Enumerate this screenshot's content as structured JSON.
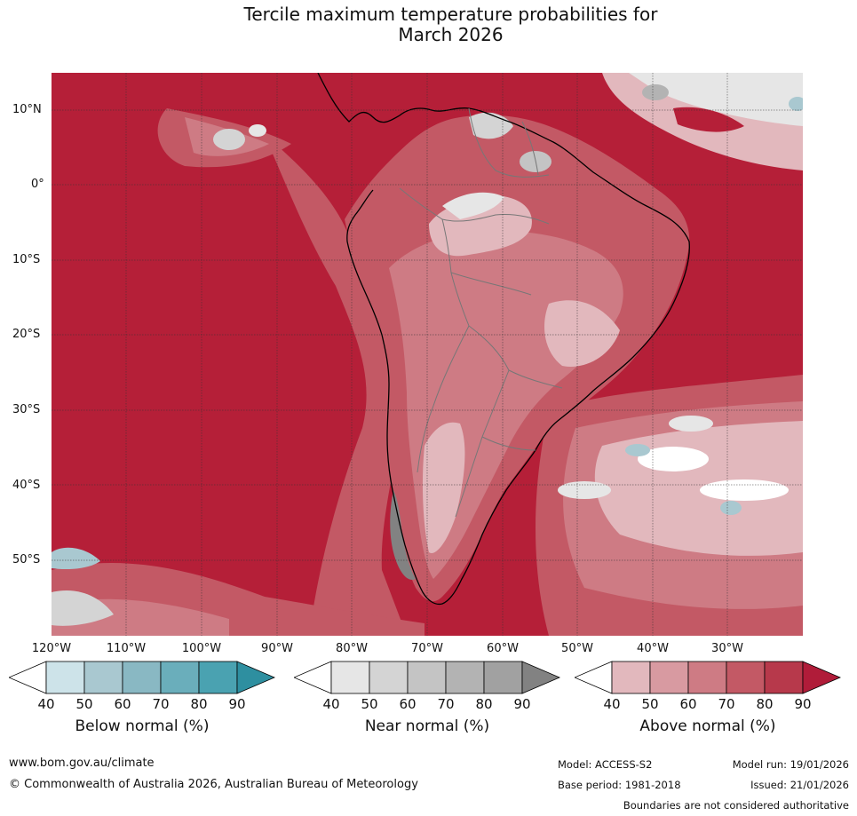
{
  "title_line1": "Tercile maximum temperature probabilities for",
  "title_line2": "March 2026",
  "map": {
    "lat_labels": [
      "10°N",
      "0°",
      "10°S",
      "20°S",
      "30°S",
      "40°S",
      "50°S"
    ],
    "lon_labels": [
      "120°W",
      "110°W",
      "100°W",
      "90°W",
      "80°W",
      "70°W",
      "60°W",
      "50°W",
      "40°W",
      "30°W"
    ],
    "base_color": "#b51f38"
  },
  "colorbars": [
    {
      "title": "Below normal (%)",
      "ticks": [
        "40",
        "50",
        "60",
        "70",
        "80",
        "90"
      ],
      "low_color": "#ffffff",
      "colors": [
        "#cde3e9",
        "#a9c8d0",
        "#89b8c3",
        "#6aaebb",
        "#4aa2b1"
      ],
      "high_color": "#2e8fa0"
    },
    {
      "title": "Near normal (%)",
      "ticks": [
        "40",
        "50",
        "60",
        "70",
        "80",
        "90"
      ],
      "low_color": "#ffffff",
      "colors": [
        "#e6e6e6",
        "#d4d4d4",
        "#c4c4c4",
        "#b3b3b3",
        "#a1a1a1"
      ],
      "high_color": "#828282"
    },
    {
      "title": "Above normal (%)",
      "ticks": [
        "40",
        "50",
        "60",
        "70",
        "80",
        "90"
      ],
      "low_color": "#ffffff",
      "colors": [
        "#e2b8bd",
        "#d89aa1",
        "#ce7b84",
        "#c35965",
        "#b7394b"
      ],
      "high_color": "#b01c39"
    }
  ],
  "footer": {
    "website": "www.bom.gov.au/climate",
    "copyright": "© Commonwealth of Australia 2026, Australian Bureau of Meteorology",
    "model": "Model: ACCESS-S2",
    "base_period": "Base period: 1981-2018",
    "model_run": "Model run: 19/01/2026",
    "issued": "Issued: 21/01/2026",
    "disclaimer": "Boundaries are not considered authoritative"
  }
}
